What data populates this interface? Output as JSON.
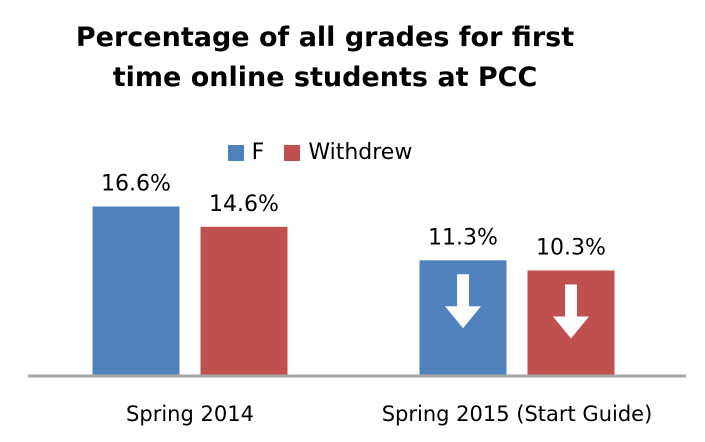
{
  "chart_data": {
    "type": "bar",
    "title": "Percentage of all grades for first time online students at PCC",
    "title_lines": [
      "Percentage of all grades for first",
      "time online students at PCC"
    ],
    "categories": [
      "Spring 2014",
      "Spring 2015 (Start Guide)"
    ],
    "series": [
      {
        "name": "F",
        "values": [
          16.6,
          11.3
        ],
        "labels": [
          "16.6%",
          "11.3%"
        ],
        "color": "#4F81BD"
      },
      {
        "name": "Withdrew",
        "values": [
          14.6,
          10.3
        ],
        "labels": [
          "14.6%",
          "10.3%"
        ],
        "color": "#C0504D"
      }
    ],
    "ylim": [
      0,
      20
    ],
    "grid": false,
    "legend_position": "top",
    "annotations": [
      {
        "category": "Spring 2015 (Start Guide)",
        "mark": "down-arrow",
        "series": [
          "F",
          "Withdrew"
        ],
        "color": "#ffffff"
      }
    ],
    "axis_color": "#A6A6A6"
  }
}
